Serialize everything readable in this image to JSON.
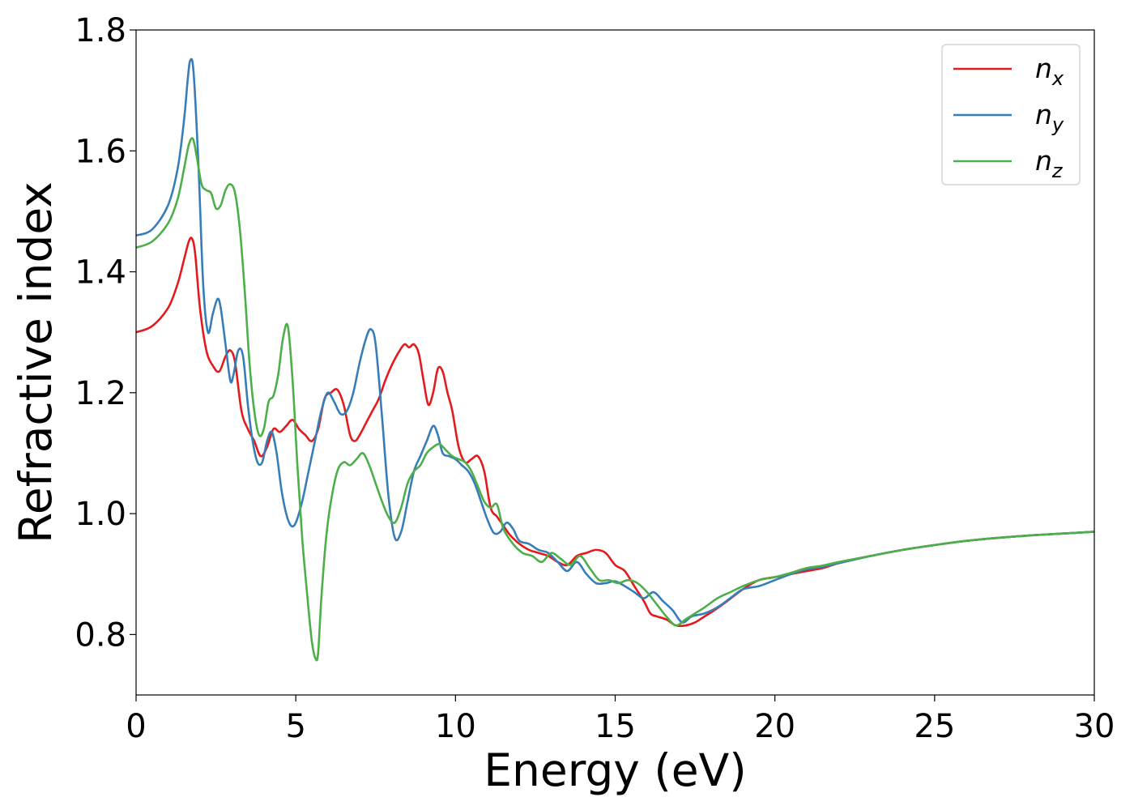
{
  "chart_data": {
    "type": "line",
    "title": "",
    "xlabel": "Energy (eV)",
    "ylabel": "Refractive index",
    "xlim": [
      0,
      30
    ],
    "ylim": [
      0.7,
      1.8
    ],
    "xticks": [
      0,
      5,
      10,
      15,
      20,
      25,
      30
    ],
    "xtick_labels": [
      "0",
      "5",
      "10",
      "15",
      "20",
      "25",
      "30"
    ],
    "yticks": [
      0.8,
      1.0,
      1.2,
      1.4,
      1.6,
      1.8
    ],
    "ytick_labels": [
      "0.8",
      "1.0",
      "1.2",
      "1.4",
      "1.6",
      "1.8"
    ],
    "grid": false,
    "legend_position": "top-right",
    "series": [
      {
        "name": "n",
        "subscript": "x",
        "color": "#e41a1c",
        "x": [
          0,
          0.5,
          1.0,
          1.3,
          1.5,
          1.65,
          1.75,
          1.85,
          2.0,
          2.2,
          2.4,
          2.6,
          2.8,
          2.95,
          3.1,
          3.3,
          3.5,
          3.7,
          3.9,
          4.1,
          4.3,
          4.5,
          4.7,
          4.9,
          5.1,
          5.3,
          5.5,
          5.7,
          5.9,
          6.1,
          6.3,
          6.5,
          6.7,
          6.85,
          7.0,
          7.2,
          7.4,
          7.6,
          7.8,
          8.0,
          8.2,
          8.4,
          8.55,
          8.7,
          8.85,
          9.0,
          9.15,
          9.3,
          9.45,
          9.6,
          9.75,
          9.9,
          10.1,
          10.3,
          10.5,
          10.7,
          10.9,
          11.1,
          11.3,
          11.5,
          11.7,
          12.0,
          12.3,
          12.6,
          12.9,
          13.2,
          13.5,
          13.8,
          14.1,
          14.4,
          14.7,
          15.0,
          15.3,
          15.6,
          15.9,
          16.1,
          16.3,
          16.6,
          16.9,
          17.2,
          17.5,
          17.8,
          18.1,
          18.5,
          19.0,
          19.5,
          20.0,
          20.5,
          21.0,
          21.5,
          22.0,
          23.0,
          24.0,
          25.0,
          26.0,
          27.0,
          28.0,
          29.0,
          30.0
        ],
        "y": [
          1.3,
          1.31,
          1.34,
          1.38,
          1.42,
          1.45,
          1.455,
          1.43,
          1.34,
          1.27,
          1.245,
          1.235,
          1.26,
          1.27,
          1.25,
          1.17,
          1.14,
          1.12,
          1.095,
          1.11,
          1.14,
          1.135,
          1.145,
          1.155,
          1.14,
          1.13,
          1.12,
          1.14,
          1.19,
          1.2,
          1.205,
          1.18,
          1.13,
          1.12,
          1.13,
          1.15,
          1.17,
          1.19,
          1.22,
          1.245,
          1.265,
          1.28,
          1.275,
          1.28,
          1.265,
          1.22,
          1.18,
          1.2,
          1.24,
          1.235,
          1.2,
          1.17,
          1.11,
          1.085,
          1.09,
          1.095,
          1.07,
          1.01,
          0.995,
          0.98,
          0.965,
          0.95,
          0.94,
          0.935,
          0.93,
          0.92,
          0.915,
          0.93,
          0.935,
          0.94,
          0.935,
          0.915,
          0.905,
          0.88,
          0.855,
          0.835,
          0.83,
          0.825,
          0.815,
          0.815,
          0.82,
          0.83,
          0.84,
          0.855,
          0.875,
          0.89,
          0.895,
          0.9,
          0.905,
          0.91,
          0.918,
          0.93,
          0.94,
          0.948,
          0.955,
          0.96,
          0.964,
          0.967,
          0.97
        ]
      },
      {
        "name": "n",
        "subscript": "y",
        "color": "#377eb8",
        "x": [
          0,
          0.5,
          1.0,
          1.3,
          1.5,
          1.62,
          1.7,
          1.8,
          1.95,
          2.1,
          2.25,
          2.4,
          2.55,
          2.65,
          2.8,
          2.95,
          3.05,
          3.2,
          3.35,
          3.5,
          3.65,
          3.8,
          3.95,
          4.1,
          4.25,
          4.4,
          4.55,
          4.7,
          4.85,
          5.0,
          5.2,
          5.4,
          5.6,
          5.8,
          6.0,
          6.2,
          6.4,
          6.6,
          6.8,
          7.0,
          7.2,
          7.35,
          7.5,
          7.7,
          7.9,
          8.1,
          8.3,
          8.5,
          8.7,
          8.9,
          9.1,
          9.3,
          9.45,
          9.6,
          9.8,
          10.0,
          10.2,
          10.4,
          10.6,
          10.8,
          11.0,
          11.2,
          11.4,
          11.6,
          11.8,
          12.0,
          12.3,
          12.6,
          12.9,
          13.2,
          13.5,
          13.8,
          14.1,
          14.4,
          14.7,
          15.0,
          15.3,
          15.6,
          15.9,
          16.2,
          16.5,
          16.8,
          17.1,
          17.4,
          17.8,
          18.2,
          18.6,
          19.0,
          19.5,
          20.0,
          20.5,
          21.0,
          21.5,
          22.0,
          23.0,
          24.0,
          25.0,
          26.0,
          27.0,
          28.0,
          29.0,
          30.0
        ],
        "y": [
          1.46,
          1.47,
          1.51,
          1.57,
          1.65,
          1.72,
          1.75,
          1.73,
          1.58,
          1.38,
          1.3,
          1.33,
          1.355,
          1.34,
          1.28,
          1.22,
          1.23,
          1.27,
          1.26,
          1.18,
          1.12,
          1.085,
          1.085,
          1.12,
          1.135,
          1.1,
          1.04,
          1.0,
          0.98,
          0.985,
          1.02,
          1.07,
          1.12,
          1.17,
          1.2,
          1.185,
          1.165,
          1.17,
          1.2,
          1.25,
          1.29,
          1.305,
          1.28,
          1.16,
          1.03,
          0.96,
          0.97,
          1.02,
          1.07,
          1.095,
          1.12,
          1.145,
          1.13,
          1.1,
          1.095,
          1.09,
          1.08,
          1.07,
          1.05,
          1.02,
          0.99,
          0.968,
          0.97,
          0.985,
          0.975,
          0.955,
          0.95,
          0.94,
          0.935,
          0.92,
          0.905,
          0.92,
          0.9,
          0.885,
          0.885,
          0.888,
          0.88,
          0.87,
          0.86,
          0.87,
          0.855,
          0.84,
          0.82,
          0.83,
          0.835,
          0.845,
          0.86,
          0.875,
          0.88,
          0.89,
          0.9,
          0.908,
          0.912,
          0.918,
          0.93,
          0.94,
          0.948,
          0.955,
          0.96,
          0.964,
          0.967,
          0.97
        ]
      },
      {
        "name": "n",
        "subscript": "z",
        "color": "#4daf4a",
        "x": [
          0,
          0.5,
          1.0,
          1.3,
          1.5,
          1.65,
          1.78,
          1.9,
          2.05,
          2.2,
          2.35,
          2.5,
          2.65,
          2.8,
          2.95,
          3.1,
          3.25,
          3.4,
          3.55,
          3.7,
          3.85,
          4.0,
          4.15,
          4.3,
          4.45,
          4.6,
          4.75,
          4.9,
          5.05,
          5.2,
          5.35,
          5.5,
          5.62,
          5.7,
          5.8,
          5.95,
          6.1,
          6.3,
          6.5,
          6.7,
          6.9,
          7.1,
          7.3,
          7.5,
          7.7,
          7.9,
          8.1,
          8.3,
          8.5,
          8.7,
          8.9,
          9.1,
          9.3,
          9.5,
          9.7,
          9.9,
          10.1,
          10.3,
          10.5,
          10.7,
          10.9,
          11.1,
          11.3,
          11.5,
          11.8,
          12.1,
          12.4,
          12.7,
          13.0,
          13.3,
          13.6,
          13.9,
          14.2,
          14.5,
          14.8,
          15.1,
          15.4,
          15.7,
          16.0,
          16.3,
          16.6,
          16.9,
          17.2,
          17.5,
          17.8,
          18.2,
          18.6,
          19.0,
          19.5,
          20.0,
          20.5,
          21.0,
          21.5,
          22.0,
          23.0,
          24.0,
          25.0,
          26.0,
          27.0,
          28.0,
          29.0,
          30.0
        ],
        "y": [
          1.44,
          1.45,
          1.48,
          1.52,
          1.57,
          1.61,
          1.62,
          1.59,
          1.545,
          1.535,
          1.53,
          1.505,
          1.51,
          1.535,
          1.545,
          1.53,
          1.47,
          1.37,
          1.25,
          1.17,
          1.13,
          1.14,
          1.185,
          1.195,
          1.23,
          1.29,
          1.31,
          1.22,
          1.08,
          0.96,
          0.87,
          0.79,
          0.76,
          0.77,
          0.86,
          0.96,
          1.02,
          1.07,
          1.085,
          1.08,
          1.09,
          1.1,
          1.08,
          1.05,
          1.02,
          0.995,
          0.985,
          1.01,
          1.05,
          1.07,
          1.08,
          1.1,
          1.11,
          1.115,
          1.105,
          1.095,
          1.09,
          1.085,
          1.07,
          1.045,
          1.02,
          1.01,
          1.015,
          0.975,
          0.95,
          0.935,
          0.93,
          0.92,
          0.935,
          0.925,
          0.915,
          0.93,
          0.91,
          0.89,
          0.89,
          0.885,
          0.89,
          0.885,
          0.87,
          0.85,
          0.83,
          0.815,
          0.825,
          0.835,
          0.845,
          0.86,
          0.87,
          0.88,
          0.89,
          0.895,
          0.902,
          0.91,
          0.914,
          0.92,
          0.93,
          0.94,
          0.948,
          0.955,
          0.96,
          0.964,
          0.967,
          0.97
        ]
      }
    ]
  }
}
